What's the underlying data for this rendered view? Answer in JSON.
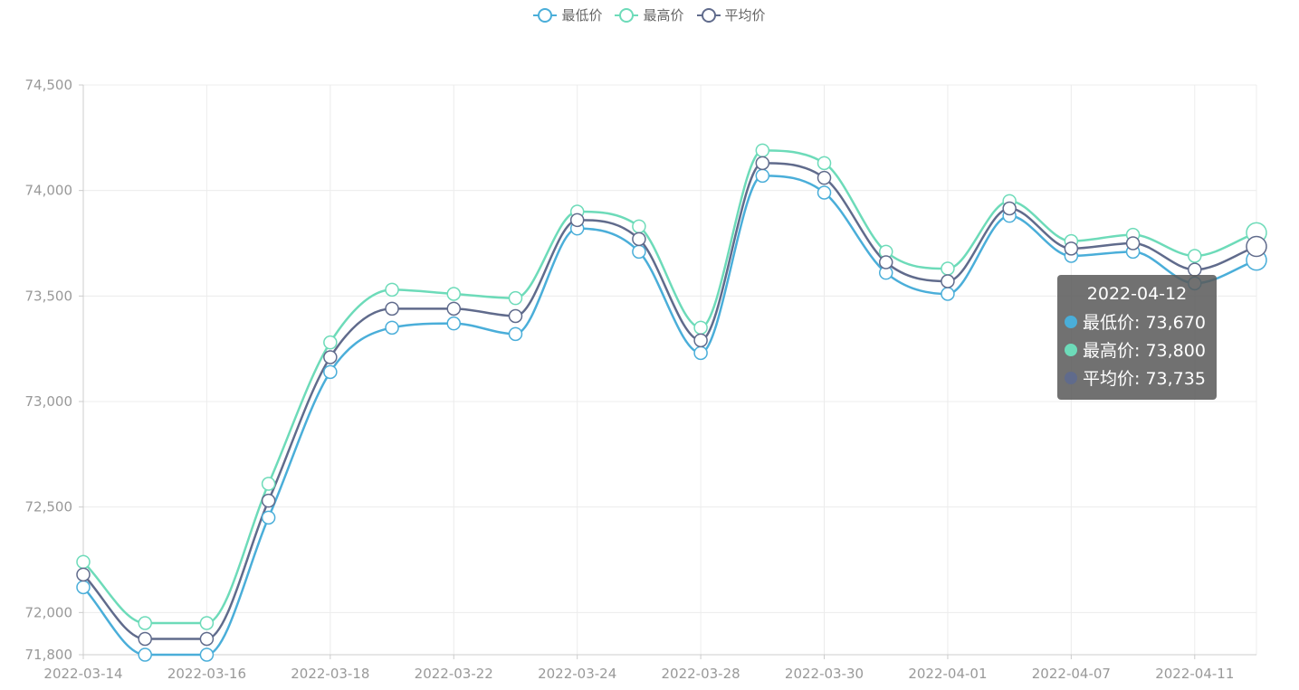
{
  "legend": {
    "items": [
      {
        "label": "最低价",
        "color": "#4aaed9"
      },
      {
        "label": "最高价",
        "color": "#6ddbb9"
      },
      {
        "label": "平均价",
        "color": "#606b8c"
      }
    ]
  },
  "tooltip": {
    "date": "2022-04-12",
    "rows": [
      {
        "label": "最低价: 73,670",
        "color": "#4aaed9"
      },
      {
        "label": "最高价: 73,800",
        "color": "#6ddbb9"
      },
      {
        "label": "平均价: 73,735",
        "color": "#606b8c"
      }
    ]
  },
  "chart_data": {
    "type": "line",
    "title": "",
    "xlabel": "",
    "ylabel": "",
    "ylim": [
      71800,
      74500
    ],
    "y_ticks": [
      71800,
      72000,
      72500,
      73000,
      73500,
      74000,
      74500
    ],
    "y_tick_labels": [
      "71,800",
      "72,000",
      "72,500",
      "73,000",
      "73,500",
      "74,000",
      "74,500"
    ],
    "x_tick_labels": [
      "2022-03-14",
      "2022-03-16",
      "2022-03-18",
      "2022-03-22",
      "2022-03-24",
      "2022-03-28",
      "2022-03-30",
      "2022-04-01",
      "2022-04-07",
      "2022-04-11"
    ],
    "point_count": 20,
    "grid": true,
    "legend_position": "top-center",
    "series": [
      {
        "name": "最低价",
        "color": "#4aaed9",
        "values": [
          72120,
          71800,
          71800,
          72450,
          73140,
          73350,
          73370,
          73320,
          73820,
          73710,
          73230,
          74070,
          73990,
          73610,
          73510,
          73880,
          73690,
          73710,
          73560,
          73670
        ]
      },
      {
        "name": "最高价",
        "color": "#6ddbb9",
        "values": [
          72240,
          71950,
          71950,
          72610,
          73280,
          73530,
          73510,
          73490,
          73900,
          73830,
          73350,
          74190,
          74130,
          73710,
          73630,
          73950,
          73760,
          73790,
          73690,
          73800
        ]
      },
      {
        "name": "平均价",
        "color": "#606b8c",
        "values": [
          72180,
          71875,
          71875,
          72530,
          73210,
          73440,
          73440,
          73405,
          73860,
          73770,
          73290,
          74130,
          74060,
          73660,
          73570,
          73915,
          73725,
          73750,
          73625,
          73735
        ]
      }
    ]
  }
}
